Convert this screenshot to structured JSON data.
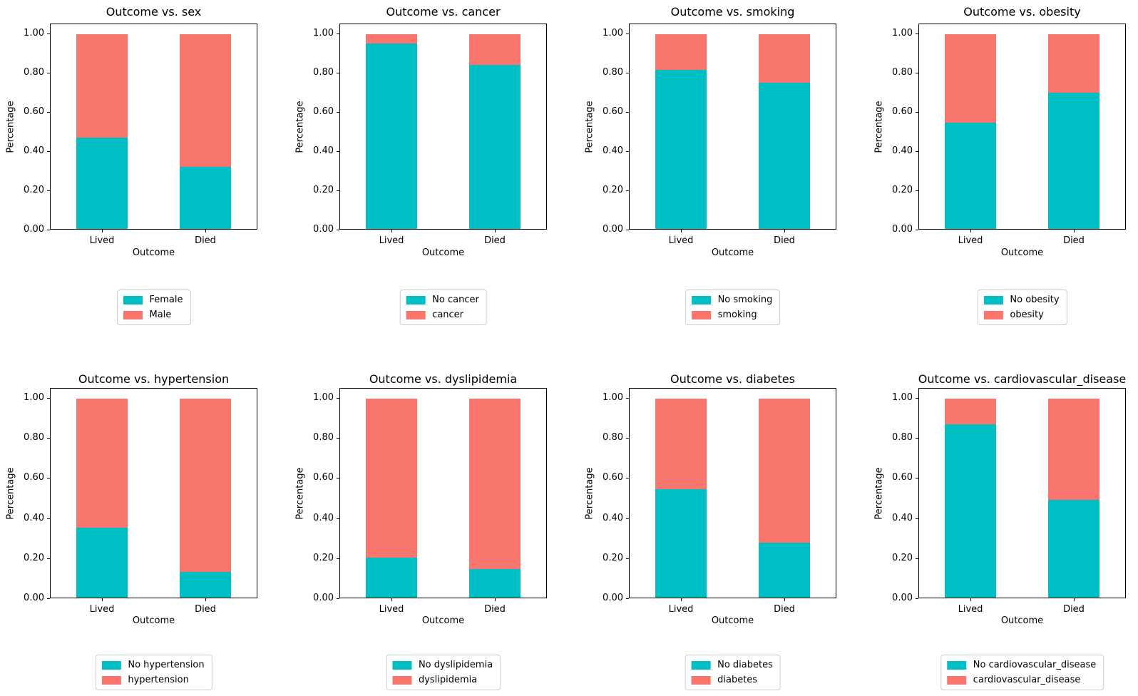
{
  "colors": {
    "series1": "#00BFC4",
    "series2": "#F8766D",
    "axis": "#000000",
    "legend_border": "#cccccc",
    "background": "#ffffff"
  },
  "axes_common": {
    "xlabel": "Outcome",
    "ylabel": "Percentage",
    "categories": [
      "Lived",
      "Died"
    ],
    "ytick_labels": [
      "0.00",
      "0.20",
      "0.40",
      "0.60",
      "0.80",
      "1.00"
    ],
    "ytick_values": [
      0.0,
      0.2,
      0.4,
      0.6,
      0.8,
      1.0
    ],
    "ylim": [
      0,
      1.05
    ],
    "legend_position": "below-center",
    "grid": false
  },
  "chart_data": [
    {
      "type": "bar",
      "stacked": true,
      "title": "Outcome vs. sex",
      "xlabel": "Outcome",
      "ylabel": "Percentage",
      "categories": [
        "Lived",
        "Died"
      ],
      "series": [
        {
          "name": "Female",
          "values": [
            0.47,
            0.32
          ]
        },
        {
          "name": "Male",
          "values": [
            0.53,
            0.68
          ]
        }
      ]
    },
    {
      "type": "bar",
      "stacked": true,
      "title": "Outcome vs. cancer",
      "xlabel": "Outcome",
      "ylabel": "Percentage",
      "categories": [
        "Lived",
        "Died"
      ],
      "series": [
        {
          "name": "No cancer",
          "values": [
            0.95,
            0.84
          ]
        },
        {
          "name": "cancer",
          "values": [
            0.05,
            0.16
          ]
        }
      ]
    },
    {
      "type": "bar",
      "stacked": true,
      "title": "Outcome vs. smoking",
      "xlabel": "Outcome",
      "ylabel": "Percentage",
      "categories": [
        "Lived",
        "Died"
      ],
      "series": [
        {
          "name": "No smoking",
          "values": [
            0.815,
            0.75
          ]
        },
        {
          "name": "smoking",
          "values": [
            0.185,
            0.25
          ]
        }
      ]
    },
    {
      "type": "bar",
      "stacked": true,
      "title": "Outcome vs. obesity",
      "xlabel": "Outcome",
      "ylabel": "Percentage",
      "categories": [
        "Lived",
        "Died"
      ],
      "series": [
        {
          "name": "No obesity",
          "values": [
            0.545,
            0.7
          ]
        },
        {
          "name": "obesity",
          "values": [
            0.455,
            0.3
          ]
        }
      ]
    },
    {
      "type": "bar",
      "stacked": true,
      "title": "Outcome vs. hypertension",
      "xlabel": "Outcome",
      "ylabel": "Percentage",
      "categories": [
        "Lived",
        "Died"
      ],
      "series": [
        {
          "name": "No hypertension",
          "values": [
            0.35,
            0.13
          ]
        },
        {
          "name": "hypertension",
          "values": [
            0.65,
            0.87
          ]
        }
      ]
    },
    {
      "type": "bar",
      "stacked": true,
      "title": "Outcome vs. dyslipidemia",
      "xlabel": "Outcome",
      "ylabel": "Percentage",
      "categories": [
        "Lived",
        "Died"
      ],
      "series": [
        {
          "name": "No dyslipidemia",
          "values": [
            0.2,
            0.145
          ]
        },
        {
          "name": "dyslipidemia",
          "values": [
            0.8,
            0.855
          ]
        }
      ]
    },
    {
      "type": "bar",
      "stacked": true,
      "title": "Outcome vs. diabetes",
      "xlabel": "Outcome",
      "ylabel": "Percentage",
      "categories": [
        "Lived",
        "Died"
      ],
      "series": [
        {
          "name": "No diabetes",
          "values": [
            0.545,
            0.275
          ]
        },
        {
          "name": "diabetes",
          "values": [
            0.455,
            0.725
          ]
        }
      ]
    },
    {
      "type": "bar",
      "stacked": true,
      "title": "Outcome vs. cardiovascular_disease",
      "xlabel": "Outcome",
      "ylabel": "Percentage",
      "categories": [
        "Lived",
        "Died"
      ],
      "series": [
        {
          "name": "No cardiovascular_disease",
          "values": [
            0.87,
            0.49
          ]
        },
        {
          "name": "cardiovascular_disease",
          "values": [
            0.13,
            0.51
          ]
        }
      ]
    }
  ]
}
